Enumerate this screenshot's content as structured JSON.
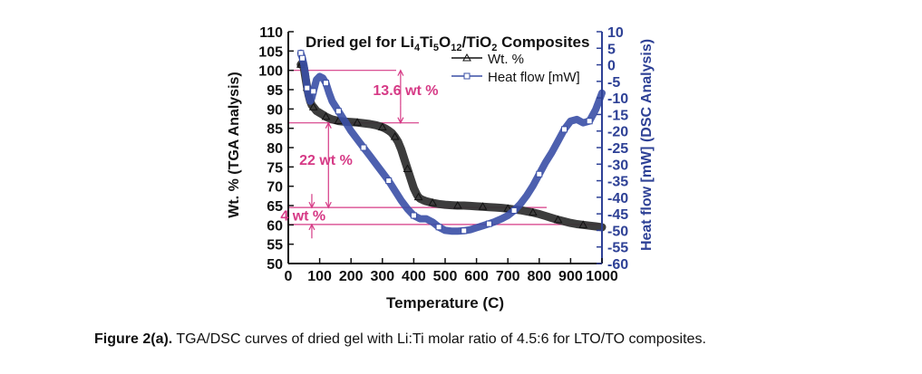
{
  "chart_data": {
    "type": "line",
    "title": {
      "prefix": "Dried gel for Li",
      "sub1": "4",
      "mid1": "Ti",
      "sub2": "5",
      "mid2": "O",
      "sub3": "12",
      "mid3": "/TiO",
      "sub4": "2",
      "suffix": " Composites"
    },
    "xlabel": "Temperature (C)",
    "ylabel_left": "Wt. % (TGA Analysis)",
    "ylabel_right": "Heat flow [mW] (DSC Analysis)",
    "xlim": [
      0,
      1000
    ],
    "ylim_left": [
      50,
      110
    ],
    "ylim_right": [
      -60,
      10
    ],
    "x_ticks": [
      "0",
      "100",
      "200",
      "300",
      "400",
      "500",
      "600",
      "700",
      "800",
      "900",
      "1000"
    ],
    "y_left_ticks": [
      "50",
      "55",
      "60",
      "65",
      "70",
      "75",
      "80",
      "85",
      "90",
      "95",
      "100",
      "105",
      "110"
    ],
    "y_right_ticks": [
      "10",
      "5",
      "0",
      "-5",
      "-10",
      "-15",
      "-20",
      "-25",
      "-30",
      "-35",
      "-40",
      "-45",
      "-50",
      "-55",
      "-60"
    ],
    "legend": {
      "placement": "top-right",
      "entries": [
        "Wt. %",
        "Heat flow [mW]"
      ]
    },
    "colors": {
      "tga": "#333333",
      "dsc": "#3a4fa6",
      "axis_right": "#2e4196",
      "annotation": "#d63a86",
      "guide": "#d63a86"
    },
    "series": [
      {
        "name": "Wt. %",
        "axis": "left",
        "marker": "triangle",
        "x": [
          40,
          45,
          50,
          55,
          60,
          65,
          70,
          75,
          80,
          90,
          100,
          110,
          120,
          130,
          140,
          150,
          160,
          170,
          180,
          200,
          220,
          240,
          260,
          280,
          300,
          310,
          320,
          330,
          340,
          350,
          360,
          370,
          380,
          390,
          400,
          410,
          415,
          420,
          430,
          440,
          460,
          480,
          500,
          520,
          540,
          560,
          580,
          600,
          620,
          640,
          660,
          680,
          700,
          720,
          740,
          760,
          780,
          800,
          820,
          840,
          860,
          880,
          900,
          920,
          940,
          960,
          980,
          1000
        ],
        "y": [
          101.5,
          102,
          100.5,
          98,
          95.5,
          93.5,
          92,
          91,
          90.5,
          89.5,
          89,
          88.5,
          88,
          87.6,
          87.3,
          87.1,
          86.9,
          86.8,
          86.7,
          86.6,
          86.5,
          86.3,
          86.1,
          85.8,
          85.3,
          84.9,
          84.4,
          83.8,
          82.8,
          81.5,
          79.5,
          77,
          74.5,
          72,
          69.5,
          67.8,
          67.2,
          66.8,
          66.4,
          66.1,
          65.7,
          65.4,
          65.2,
          65.1,
          65.0,
          65.0,
          64.9,
          64.8,
          64.7,
          64.6,
          64.5,
          64.4,
          64.2,
          64.0,
          63.8,
          63.5,
          63.2,
          62.8,
          62.3,
          61.8,
          61.3,
          60.9,
          60.5,
          60.2,
          60.0,
          59.8,
          59.6,
          59.4
        ]
      },
      {
        "name": "Heat flow [mW]",
        "axis": "right",
        "marker": "square",
        "x": [
          40,
          45,
          50,
          55,
          60,
          65,
          70,
          75,
          80,
          90,
          100,
          110,
          120,
          130,
          140,
          150,
          160,
          180,
          200,
          220,
          240,
          260,
          280,
          300,
          320,
          340,
          360,
          380,
          400,
          420,
          440,
          460,
          480,
          500,
          520,
          540,
          560,
          580,
          600,
          620,
          640,
          660,
          680,
          700,
          720,
          740,
          760,
          780,
          800,
          820,
          840,
          860,
          880,
          900,
          920,
          940,
          960,
          980,
          1000
        ],
        "y": [
          3.5,
          2,
          0,
          -3,
          -7,
          -9.5,
          -11,
          -10,
          -8,
          -4.5,
          -3.5,
          -4,
          -5.5,
          -8.5,
          -11,
          -12.5,
          -14,
          -17,
          -20,
          -22.5,
          -25,
          -27.5,
          -30,
          -32.5,
          -35,
          -38,
          -41,
          -43.5,
          -45.5,
          -46.5,
          -46.5,
          -47.5,
          -49,
          -50,
          -50.2,
          -50.2,
          -50.1,
          -49.8,
          -49.2,
          -48.6,
          -48,
          -47.3,
          -46.5,
          -45.5,
          -44,
          -42,
          -39.5,
          -36.5,
          -33,
          -29.5,
          -26.5,
          -23,
          -19.5,
          -17,
          -16.5,
          -17.5,
          -17,
          -13.5,
          -8.5
        ]
      }
    ],
    "annotations": [
      {
        "label": "13.6 wt %",
        "x": 475,
        "y": 95
      },
      {
        "label": "22 wt %",
        "x": 335,
        "y": 77
      },
      {
        "label": "4 wt %",
        "x": 275,
        "y": 62.5
      }
    ],
    "guide_lines_left_axis": [
      100,
      86.4,
      64.5,
      60.1
    ]
  },
  "caption": {
    "label": "Figure 2(a).",
    "text": " TGA/DSC curves of dried gel with Li:Ti molar ratio of 4.5:6 for LTO/TO composites."
  }
}
